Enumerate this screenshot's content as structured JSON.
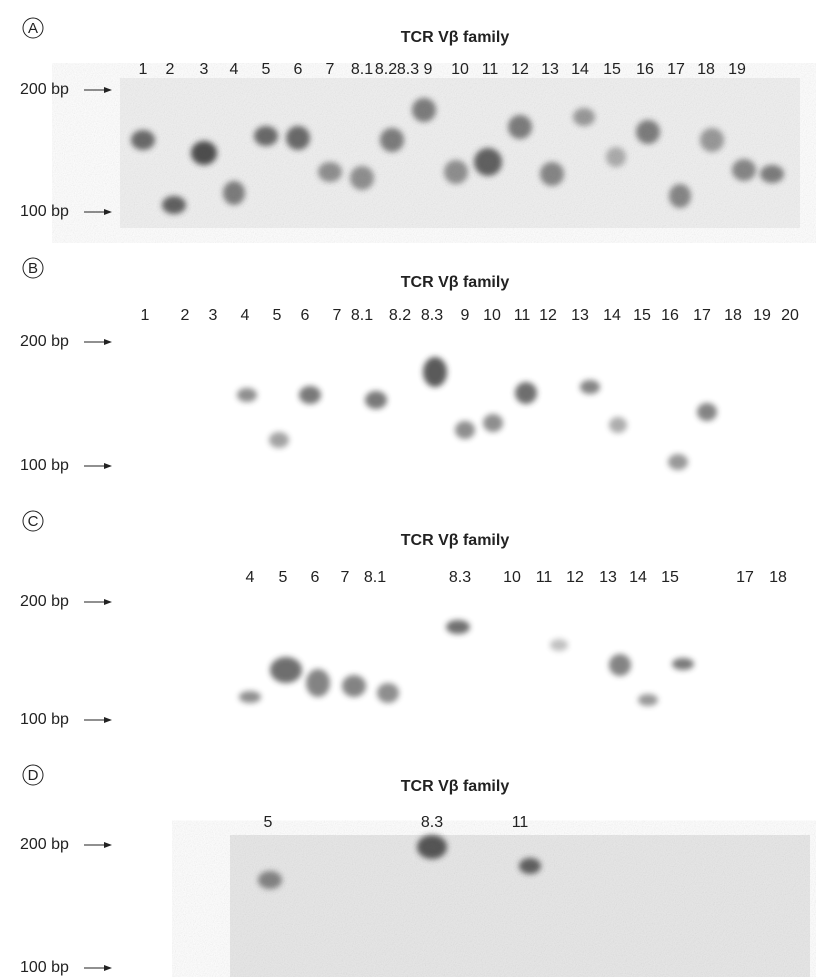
{
  "panels": [
    {
      "label": "A",
      "title": "TCR Vβ family",
      "lanes": [
        "1",
        "2",
        "3",
        "4",
        "5",
        "6",
        "7",
        "8.1",
        "8.2",
        "8.3",
        "9",
        "10",
        "11",
        "12",
        "13",
        "14",
        "15",
        "16",
        "17",
        "18",
        "19"
      ],
      "markers": [
        "200 bp",
        "100 bp"
      ]
    },
    {
      "label": "B",
      "title": "TCR Vβ family",
      "lanes": [
        "1",
        "2",
        "3",
        "4",
        "5",
        "6",
        "7",
        "8.1",
        "8.2",
        "8.3",
        "9",
        "10",
        "11",
        "12",
        "13",
        "14",
        "15",
        "16",
        "17",
        "18",
        "19",
        "20"
      ],
      "markers": [
        "200 bp",
        "100 bp"
      ]
    },
    {
      "label": "C",
      "title": "TCR Vβ family",
      "lanes": [
        "4",
        "5",
        "6",
        "7",
        "8.1",
        "8.3",
        "10",
        "11",
        "12",
        "13",
        "14",
        "15",
        "17",
        "18"
      ],
      "markers": [
        "200 bp",
        "100 bp"
      ]
    },
    {
      "label": "D",
      "title": "TCR Vβ family",
      "lanes": [
        "5",
        "8.3",
        "11"
      ],
      "markers": [
        "200 bp",
        "100 bp"
      ]
    }
  ]
}
